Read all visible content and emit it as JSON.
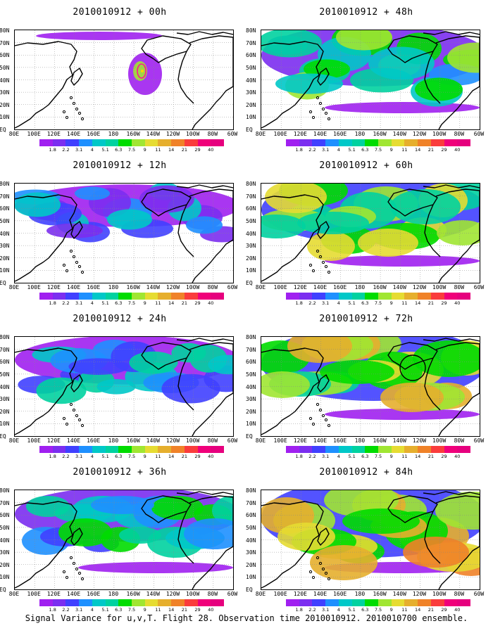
{
  "figure": {
    "caption": "Signal Variance for u,v,T. Flight 28. Observation time 2010010912. 2010010700 ensemble."
  },
  "lat_ticks": [
    "80N",
    "70N",
    "60N",
    "50N",
    "40N",
    "30N",
    "20N",
    "10N",
    "EQ"
  ],
  "lon_ticks": [
    "80E",
    "100E",
    "120E",
    "140E",
    "160E",
    "180",
    "160W",
    "140W",
    "120W",
    "100W",
    "80W",
    "60W"
  ],
  "colorbar": {
    "levels": [
      "1.8",
      "2.2",
      "3.1",
      "4",
      "5.1",
      "6.3",
      "7.5",
      "9",
      "11",
      "14",
      "21",
      "29",
      "40"
    ],
    "colors": [
      "#a020f0",
      "#7b2ef0",
      "#4040ff",
      "#1e90ff",
      "#00c8c8",
      "#00d2a0",
      "#00dc00",
      "#a0e632",
      "#e6dc32",
      "#e6af2d",
      "#f08228",
      "#fa3c3c",
      "#f0007a",
      "#e6007e"
    ]
  },
  "panels": [
    {
      "title": "2010010912 + 00h",
      "forecast_hour": 0,
      "intensity": 0.0,
      "hotspot": true,
      "circle": false
    },
    {
      "title": "2010010912 + 48h",
      "forecast_hour": 48,
      "intensity": 0.55,
      "hotspot": false,
      "circle": false
    },
    {
      "title": "2010010912 + 12h",
      "forecast_hour": 12,
      "intensity": 0.15,
      "hotspot": false,
      "circle": false
    },
    {
      "title": "2010010912 + 60h",
      "forecast_hour": 60,
      "intensity": 0.7,
      "hotspot": false,
      "circle": false
    },
    {
      "title": "2010010912 + 24h",
      "forecast_hour": 24,
      "intensity": 0.28,
      "hotspot": false,
      "circle": false
    },
    {
      "title": "2010010912 + 72h",
      "forecast_hour": 72,
      "intensity": 0.8,
      "hotspot": false,
      "circle": true
    },
    {
      "title": "2010010912 + 36h",
      "forecast_hour": 36,
      "intensity": 0.4,
      "hotspot": false,
      "circle": false
    },
    {
      "title": "2010010912 + 84h",
      "forecast_hour": 84,
      "intensity": 0.9,
      "hotspot": false,
      "circle": false
    }
  ]
}
